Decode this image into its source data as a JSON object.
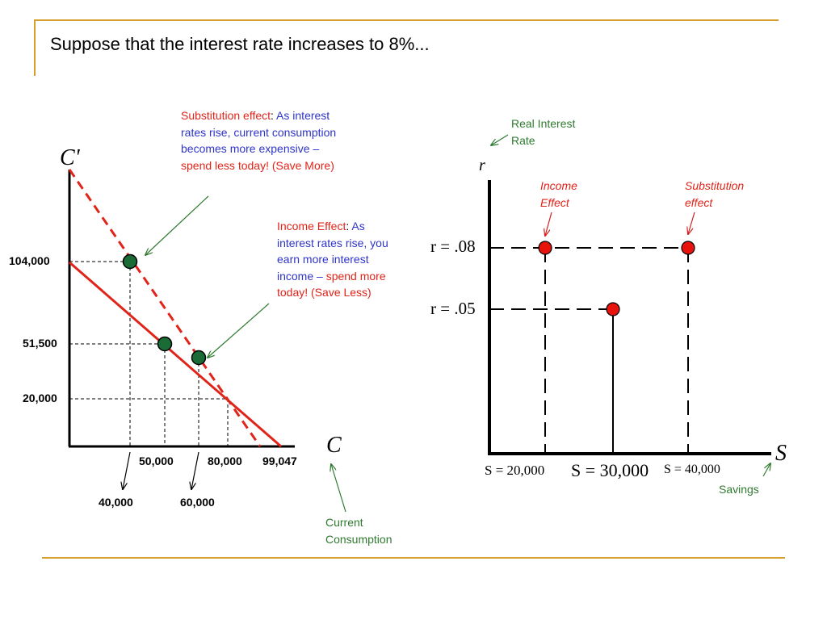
{
  "slide": {
    "title": "Suppose that the interest rate increases to 8%..."
  },
  "left_chart": {
    "y_axis_label": "C'",
    "x_axis_label": "C",
    "y_ticks": [
      "104,000",
      "51,500",
      "20,000"
    ],
    "x_ticks_upper": [
      "50,000",
      "80,000",
      "99,047"
    ],
    "x_ticks_lower": [
      "40,000",
      "60,000"
    ],
    "substitution_note": {
      "title": "Substitution effect",
      "colon": ":",
      "blue_text": " As interest rates rise, current consumption becomes more expensive – ",
      "red_text": "spend less today! (Save More)"
    },
    "income_note": {
      "title": "Income Effect",
      "colon": ":",
      "blue_text": " As interest rates rise, you earn more interest income – ",
      "red_text": "spend more today! (Save Less)"
    },
    "current_consumption_label": "Current Consumption"
  },
  "right_chart": {
    "y_axis_label": "r",
    "x_axis_label": "S",
    "real_interest_label": "Real Interest Rate",
    "savings_label": "Savings",
    "income_effect_label": "Income Effect",
    "substitution_effect_label": "Substitution effect",
    "r_high": "r = .08",
    "r_low": "r = .05",
    "s_labels": [
      "S = 20,000",
      "S = 30,000",
      "S = 40,000"
    ]
  },
  "chart_data": [
    {
      "type": "line",
      "xlabel": "C",
      "ylabel": "C'",
      "series": [
        {
          "style": "solid",
          "color": "#e0241a",
          "points": [
            [
              0,
              110000
            ],
            [
              99047,
              0
            ]
          ]
        },
        {
          "style": "dashed",
          "color": "#e0241a",
          "points": [
            [
              0,
              132000
            ],
            [
              90000,
              0
            ]
          ]
        }
      ],
      "points": [
        {
          "x": 40000,
          "y": 104000,
          "color": "#1a6b35"
        },
        {
          "x": 50000,
          "y": 51500,
          "color": "#1a6b35"
        },
        {
          "x": 60000,
          "y": 44000,
          "color": "#1a6b35"
        }
      ],
      "colors": {
        "budget_line": "#e0241a",
        "dots": "#1a6b35"
      }
    },
    {
      "type": "scatter",
      "xlabel": "S",
      "ylabel": "r",
      "points": [
        {
          "x": 20000,
          "y": 0.08,
          "color": "#e8130c"
        },
        {
          "x": 40000,
          "y": 0.08,
          "color": "#e8130c"
        },
        {
          "x": 30000,
          "y": 0.05,
          "color": "#e8130c"
        }
      ],
      "colors": {
        "dots": "#e8130c",
        "arrows": "#d11f1f"
      }
    }
  ]
}
